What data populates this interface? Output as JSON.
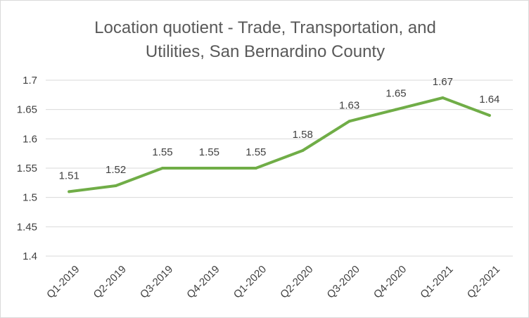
{
  "chart_data": {
    "type": "line",
    "title": "Location quotient - Trade, Transportation, and Utilities, San Bernardino County",
    "title_lines": [
      "Location quotient - Trade, Transportation, and",
      "Utilities, San Bernardino County"
    ],
    "categories": [
      "Q1-2019",
      "Q2-2019",
      "Q3-2019",
      "Q4-2019",
      "Q1-2020",
      "Q2-2020",
      "Q3-2020",
      "Q4-2020",
      "Q1-2021",
      "Q2-2021"
    ],
    "series": [
      {
        "values": [
          1.51,
          1.52,
          1.55,
          1.55,
          1.55,
          1.58,
          1.63,
          1.65,
          1.67,
          1.64
        ],
        "color": "#70ad47",
        "data_labels": [
          "1.51",
          "1.52",
          "1.55",
          "1.55",
          "1.55",
          "1.58",
          "1.63",
          "1.65",
          "1.67",
          "1.64"
        ]
      }
    ],
    "ylim": [
      1.4,
      1.7
    ],
    "yticks": [
      1.4,
      1.45,
      1.5,
      1.55,
      1.6,
      1.65,
      1.7
    ],
    "ytick_labels": [
      "1.4",
      "1.45",
      "1.5",
      "1.55",
      "1.6",
      "1.65",
      "1.7"
    ],
    "grid": true,
    "gridline_color": "#d9d9d9",
    "legend": "none",
    "xlabel": "",
    "ylabel": ""
  }
}
